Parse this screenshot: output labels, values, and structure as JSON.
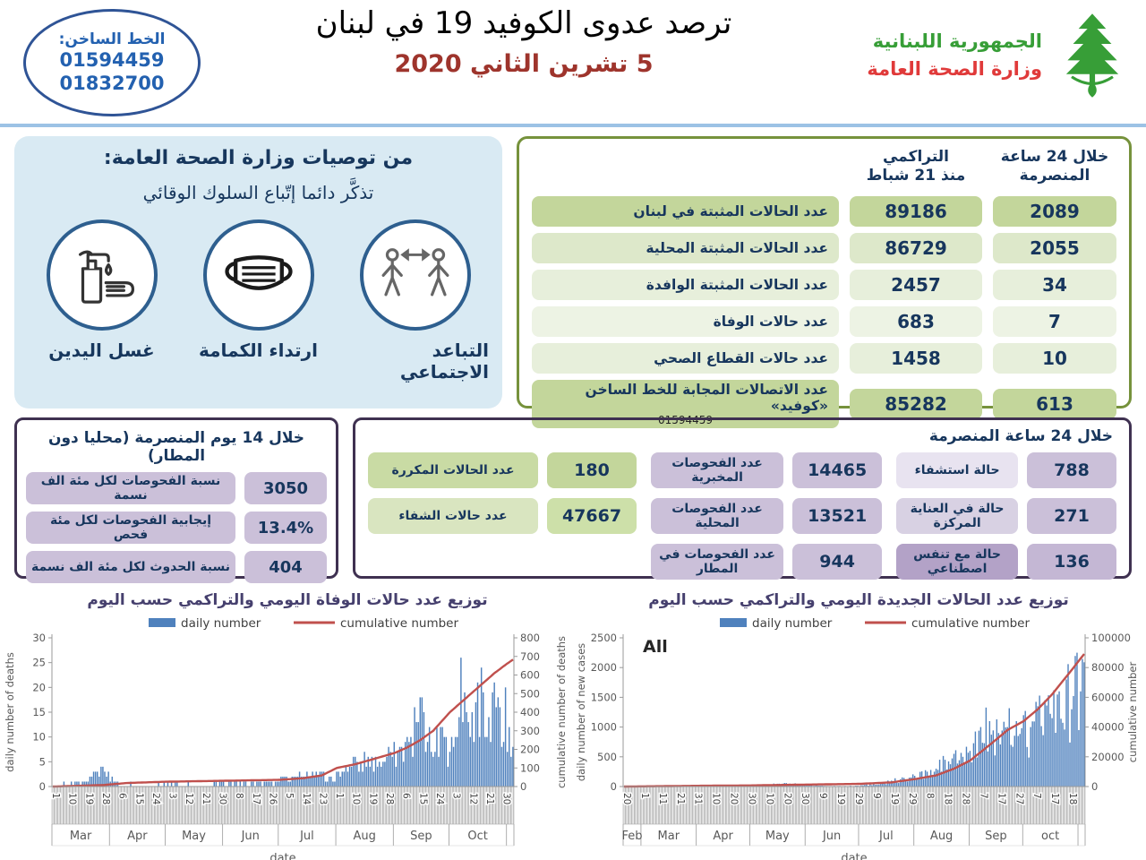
{
  "hotline": {
    "label": "الخط الساخن:",
    "numbers": [
      "01594459",
      "01832700"
    ]
  },
  "header": {
    "title": "ترصد عدوى الكوفيد 19 في لبنان",
    "date": "5 تشرين الثاني 2020",
    "ministry_line1": "الجمهورية اللبنانية",
    "ministry_line2": "وزارة الصحة العامة"
  },
  "recommendations": {
    "title": "من توصيات وزارة الصحة العامة:",
    "subtitle": "تذكَّر دائما إتّباع السلوك الوقائي",
    "items": [
      {
        "label": "التباعد الاجتماعي",
        "icon": "social-distancing-icon"
      },
      {
        "label": "ارتداء الكمامة",
        "icon": "face-mask-icon"
      },
      {
        "label": "غسل اليدين",
        "icon": "hand-washing-icon"
      }
    ]
  },
  "stats_table": {
    "header_24h": "خلال 24 ساعة\nالمنصرمة",
    "header_cum": "التراكمي\nمنذ 21 شباط",
    "rows": [
      {
        "label": "عدد الحالات المثبتة في لبنان",
        "cum": "89186",
        "h24": "2089",
        "tone": "dark"
      },
      {
        "label": "عدد الحالات المثبتة المحلية",
        "cum": "86729",
        "h24": "2055",
        "tone": "l1"
      },
      {
        "label": "عدد الحالات المثبتة الوافدة",
        "cum": "2457",
        "h24": "34",
        "tone": "l2"
      },
      {
        "label": "عدد حالات الوفاة",
        "cum": "683",
        "h24": "7",
        "tone": "l3"
      },
      {
        "label": "عدد حالات القطاع الصحي",
        "cum": "1458",
        "h24": "10",
        "tone": "l2"
      },
      {
        "label": "عدد الاتصالات المجابة  للخط الساخن «كوفيد»",
        "sub": "01594459",
        "cum": "85282",
        "h24": "613",
        "tone": "dark"
      }
    ]
  },
  "fourteen_day_box": {
    "title": "خلال 14 يوم المنصرمة (محليا دون المطار)",
    "rows": [
      {
        "label": "نسبة الفحوصات لكل مئة الف نسمة",
        "value": "3050"
      },
      {
        "label": "إيجابية الفحوصات لكل مئة فحص",
        "value": "13.4%"
      },
      {
        "label": "نسبة الحدوث لكل مئة الف نسمة",
        "value": "404"
      }
    ]
  },
  "day24_box": {
    "title": "خلال 24 ساعة المنصرمة",
    "col_green": [
      {
        "label": "عدد الحالات المكررة",
        "value": "180",
        "lbl_bg": "#c9dba4",
        "val_bg": "#c3d69b"
      },
      {
        "label": "عدد حالات الشفاء",
        "value": "47667",
        "lbl_bg": "#d9e5c0",
        "val_bg": "#cde0a9"
      }
    ],
    "col_tests": [
      {
        "label": "عدد الفحوصات المخبرية",
        "value": "14465",
        "lbl_bg": "#cbc0d9",
        "val_bg": "#cbc0d9"
      },
      {
        "label": "عدد الفحوصات المحلية",
        "value": "13521",
        "lbl_bg": "#cbc0d9",
        "val_bg": "#cbc0d9"
      },
      {
        "label": "عدد الفحوصات في المطار",
        "value": "944",
        "lbl_bg": "#cbc0d9",
        "val_bg": "#cbc0d9"
      }
    ],
    "col_hosp": [
      {
        "label": "حالة استشفاء",
        "value": "788",
        "lbl_bg": "#e8e3f0",
        "val_bg": "#cbc0d9"
      },
      {
        "label": "حالة في العناية المركزة",
        "value": "271",
        "lbl_bg": "#d8d1e3",
        "val_bg": "#cbc0d9"
      },
      {
        "label": "حالة مع تنفس اصطناعي",
        "value": "136",
        "lbl_bg": "#b3a2c7",
        "val_bg": "#c4b7d4"
      }
    ]
  },
  "chart_data": [
    {
      "id": "deaths",
      "type": "bar",
      "title": "توزيع عدد حالات الوفاة اليومي والتراكمي حسب اليوم",
      "legend": {
        "bar": "daily number",
        "line": "cumulative number"
      },
      "xlabel": "date",
      "n_days": 249,
      "left_axis": {
        "label": "daily number of deaths",
        "max": 30,
        "ticks": [
          0,
          5,
          10,
          15,
          20,
          25,
          30
        ]
      },
      "right_axis": {
        "label": "cumulative number of deaths",
        "max": 800,
        "ticks": [
          0,
          100,
          200,
          300,
          400,
          500,
          600,
          700,
          800
        ]
      },
      "day_ticks": {
        "interval": 9,
        "labels": [
          "1",
          "10",
          "19",
          "28",
          "6",
          "15",
          "24",
          "3",
          "12",
          "21",
          "30",
          "8",
          "17",
          "26",
          "5",
          "14",
          "23",
          "1",
          "10",
          "19",
          "28",
          "6",
          "15",
          "24",
          "3",
          "12",
          "21",
          "30"
        ]
      },
      "months": {
        "boundaries": [
          0,
          31,
          61,
          92,
          122,
          153,
          184,
          214,
          245,
          249
        ],
        "labels": [
          "Mar",
          "Apr",
          "May",
          "Jun",
          "Jul",
          "Aug",
          "Sep",
          "Oct"
        ]
      },
      "daily_anchors": [
        [
          0,
          0
        ],
        [
          6,
          1
        ],
        [
          12,
          1
        ],
        [
          20,
          2
        ],
        [
          27,
          4
        ],
        [
          34,
          1
        ],
        [
          48,
          0
        ],
        [
          62,
          1
        ],
        [
          76,
          0
        ],
        [
          90,
          1
        ],
        [
          104,
          1
        ],
        [
          118,
          1
        ],
        [
          126,
          2
        ],
        [
          134,
          2
        ],
        [
          142,
          3
        ],
        [
          150,
          2
        ],
        [
          158,
          4
        ],
        [
          164,
          5
        ],
        [
          170,
          6
        ],
        [
          176,
          5
        ],
        [
          182,
          7
        ],
        [
          188,
          8
        ],
        [
          193,
          10
        ],
        [
          198,
          18
        ],
        [
          202,
          9
        ],
        [
          207,
          12
        ],
        [
          212,
          10
        ],
        [
          216,
          8
        ],
        [
          220,
          26
        ],
        [
          224,
          13
        ],
        [
          228,
          17
        ],
        [
          232,
          19
        ],
        [
          235,
          14
        ],
        [
          238,
          21
        ],
        [
          241,
          16
        ],
        [
          244,
          20
        ],
        [
          246,
          12
        ],
        [
          248,
          8
        ]
      ],
      "cumulative_anchors": [
        [
          0,
          0
        ],
        [
          27,
          8
        ],
        [
          40,
          19
        ],
        [
          61,
          26
        ],
        [
          92,
          31
        ],
        [
          122,
          36
        ],
        [
          135,
          45
        ],
        [
          145,
          60
        ],
        [
          153,
          100
        ],
        [
          163,
          120
        ],
        [
          170,
          140
        ],
        [
          184,
          180
        ],
        [
          191,
          210
        ],
        [
          198,
          250
        ],
        [
          205,
          300
        ],
        [
          214,
          400
        ],
        [
          222,
          470
        ],
        [
          230,
          540
        ],
        [
          238,
          610
        ],
        [
          244,
          655
        ],
        [
          248,
          683
        ]
      ],
      "cumulative_total": 683
    },
    {
      "id": "new-cases",
      "type": "bar",
      "title": "توزيع عدد الحالات الجديدة اليومي والتراكمي حسب اليوم",
      "annotation": "All",
      "legend": {
        "bar": "daily number",
        "line": "cumulative number"
      },
      "xlabel": "date",
      "n_days": 259,
      "left_axis": {
        "label": "daily number of new cases",
        "max": 2500,
        "ticks": [
          0,
          500,
          1000,
          1500,
          2000,
          2500
        ]
      },
      "right_axis": {
        "label": "cumulative number",
        "max": 100000,
        "ticks": [
          0,
          20000,
          40000,
          60000,
          80000,
          100000
        ]
      },
      "day_ticks": {
        "interval": 10,
        "labels": [
          "20",
          "1",
          "11",
          "21",
          "31",
          "10",
          "20",
          "30",
          "10",
          "20",
          "30",
          "9",
          "19",
          "29",
          "9",
          "19",
          "29",
          "8",
          "18",
          "28",
          "7",
          "17",
          "27",
          "7",
          "17",
          "18"
        ]
      },
      "months": {
        "boundaries": [
          0,
          10,
          41,
          71,
          102,
          132,
          163,
          194,
          224,
          255,
          259
        ],
        "labels": [
          "Feb",
          "Mar",
          "Apr",
          "May",
          "Jun",
          "Jul",
          "Aug",
          "Sep",
          "oct"
        ]
      },
      "daily_anchors": [
        [
          0,
          0
        ],
        [
          10,
          4
        ],
        [
          20,
          8
        ],
        [
          30,
          12
        ],
        [
          41,
          15
        ],
        [
          50,
          8
        ],
        [
          60,
          5
        ],
        [
          71,
          10
        ],
        [
          80,
          25
        ],
        [
          90,
          60
        ],
        [
          100,
          30
        ],
        [
          110,
          15
        ],
        [
          120,
          10
        ],
        [
          130,
          15
        ],
        [
          140,
          40
        ],
        [
          150,
          100
        ],
        [
          160,
          150
        ],
        [
          163,
          180
        ],
        [
          170,
          250
        ],
        [
          175,
          300
        ],
        [
          180,
          450
        ],
        [
          185,
          550
        ],
        [
          190,
          500
        ],
        [
          194,
          600
        ],
        [
          200,
          1000
        ],
        [
          205,
          1100
        ],
        [
          210,
          900
        ],
        [
          215,
          1000
        ],
        [
          220,
          1100
        ],
        [
          224,
          1200
        ],
        [
          228,
          1000
        ],
        [
          232,
          1350
        ],
        [
          236,
          1450
        ],
        [
          240,
          1150
        ],
        [
          244,
          1600
        ],
        [
          248,
          1800
        ],
        [
          251,
          1300
        ],
        [
          254,
          2250
        ],
        [
          256,
          1600
        ],
        [
          258,
          2089
        ]
      ],
      "cumulative_anchors": [
        [
          0,
          0
        ],
        [
          41,
          500
        ],
        [
          71,
          750
        ],
        [
          102,
          1300
        ],
        [
          132,
          1800
        ],
        [
          150,
          2800
        ],
        [
          163,
          5000
        ],
        [
          175,
          7500
        ],
        [
          185,
          12000
        ],
        [
          194,
          17500
        ],
        [
          205,
          28000
        ],
        [
          215,
          38000
        ],
        [
          224,
          44000
        ],
        [
          232,
          52000
        ],
        [
          240,
          62000
        ],
        [
          246,
          71000
        ],
        [
          252,
          80000
        ],
        [
          258,
          89186
        ]
      ],
      "cumulative_total": 89186
    }
  ],
  "colors": {
    "bar": "#4f81bd",
    "line": "#c0504d",
    "green_dark": "#c3d69b",
    "accent_navy": "#17365d"
  }
}
